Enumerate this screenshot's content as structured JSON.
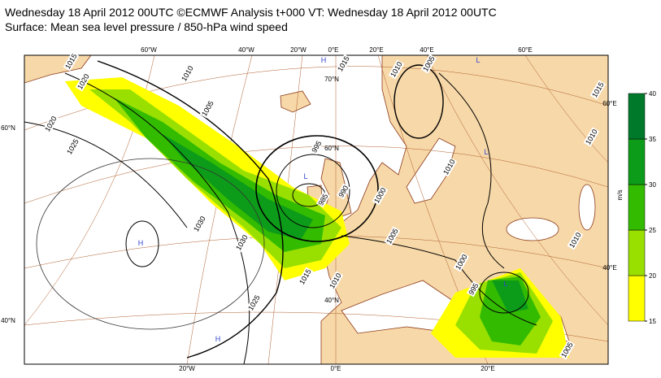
{
  "header": {
    "line1": "Wednesday 18 April 2012 00UTC ©ECMWF Analysis t+000 VT: Wednesday 18 April 2012 00UTC",
    "line2": "Surface: Mean sea level pressure / 850-hPa wind speed"
  },
  "colorbar": {
    "unit": "m/s",
    "ticks": [
      15,
      20,
      25,
      30,
      35,
      40
    ],
    "colors": [
      "#ffff00",
      "#99e000",
      "#33bb00",
      "#0d9c1a",
      "#00792a"
    ]
  },
  "graticule_labels": [
    "60°W",
    "40°W",
    "20°W",
    "0°E",
    "20°E",
    "40°E",
    "60°E",
    "70°N",
    "60°N",
    "60°N",
    "40°N",
    "40°N",
    "60°E",
    "40°E",
    "20°W",
    "0°E",
    "20°E"
  ],
  "contour_labels": [
    1015,
    1020,
    1010,
    1005,
    1020,
    1025,
    1030,
    1030,
    1025,
    995,
    990,
    985,
    1000,
    1005,
    1010,
    1015,
    1010,
    1005,
    1010,
    1015,
    1000,
    995,
    1015,
    1010,
    1005,
    1010
  ],
  "pressure_centres": [
    "H",
    "H",
    "L",
    "L",
    "L",
    "H",
    "L"
  ]
}
